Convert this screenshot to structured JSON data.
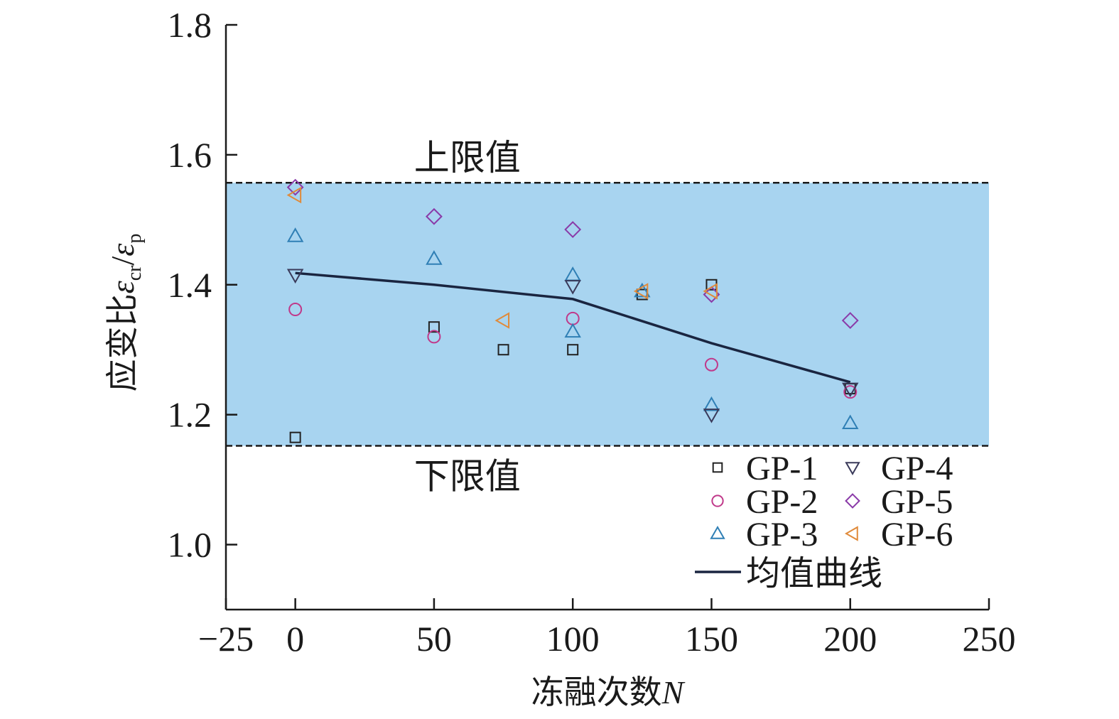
{
  "chart_data": {
    "type": "scatter",
    "xlabel": "冻融次数",
    "xlabel_var": "N",
    "ylabel": "应变比",
    "ylabel_num": "ε",
    "ylabel_num_sub": "cr",
    "ylabel_slash": "/",
    "ylabel_den": "ε",
    "ylabel_den_sub": "p",
    "xlim": [
      -25,
      250
    ],
    "ylim": [
      0.9,
      1.8
    ],
    "xticks": [
      -25,
      0,
      50,
      100,
      150,
      200,
      250
    ],
    "xtick_labels": [
      "−25",
      "0",
      "50",
      "100",
      "150",
      "200",
      "250"
    ],
    "yticks": [
      1.0,
      1.2,
      1.4,
      1.6,
      1.8
    ],
    "ytick_labels": [
      "1.0",
      "1.2",
      "1.4",
      "1.6",
      "1.8"
    ],
    "band": {
      "lower": 1.152,
      "upper": 1.557,
      "color": "#a8d4f0"
    },
    "band_labels": {
      "upper": "上限值",
      "lower": "下限值"
    },
    "series": [
      {
        "name": "GP-1",
        "marker": "square",
        "color": "#222222",
        "points": [
          [
            0,
            1.165
          ],
          [
            50,
            1.335
          ],
          [
            75,
            1.3
          ],
          [
            100,
            1.3
          ],
          [
            125,
            1.385
          ],
          [
            150,
            1.4
          ],
          [
            200,
            1.24
          ]
        ]
      },
      {
        "name": "GP-2",
        "marker": "circle",
        "color": "#c0398a",
        "points": [
          [
            0,
            1.362
          ],
          [
            50,
            1.32
          ],
          [
            100,
            1.348
          ],
          [
            150,
            1.277
          ],
          [
            200,
            1.235
          ]
        ]
      },
      {
        "name": "GP-3",
        "marker": "triangle-up",
        "color": "#2f7fb5",
        "points": [
          [
            0,
            1.475
          ],
          [
            50,
            1.44
          ],
          [
            100,
            1.328
          ],
          [
            100,
            1.415
          ],
          [
            125,
            1.39
          ],
          [
            150,
            1.215
          ],
          [
            200,
            1.187
          ]
        ]
      },
      {
        "name": "GP-4",
        "marker": "triangle-down",
        "color": "#3a3a5a",
        "points": [
          [
            0,
            1.415
          ],
          [
            100,
            1.398
          ],
          [
            150,
            1.2
          ],
          [
            200,
            1.24
          ]
        ]
      },
      {
        "name": "GP-5",
        "marker": "diamond",
        "color": "#8a3aa8",
        "points": [
          [
            0,
            1.55
          ],
          [
            50,
            1.505
          ],
          [
            100,
            1.485
          ],
          [
            150,
            1.385
          ],
          [
            200,
            1.345
          ]
        ]
      },
      {
        "name": "GP-6",
        "marker": "triangle-left",
        "color": "#e08a3a",
        "points": [
          [
            0,
            1.538
          ],
          [
            75,
            1.345
          ],
          [
            125,
            1.39
          ],
          [
            150,
            1.39
          ]
        ]
      }
    ],
    "mean_line": {
      "name": "均值曲线",
      "color": "#1a2540",
      "points": [
        [
          0,
          1.418
        ],
        [
          50,
          1.4
        ],
        [
          100,
          1.378
        ],
        [
          150,
          1.31
        ],
        [
          200,
          1.25
        ]
      ]
    },
    "legend": {
      "placement": "bottom-right",
      "columns": 2
    }
  }
}
